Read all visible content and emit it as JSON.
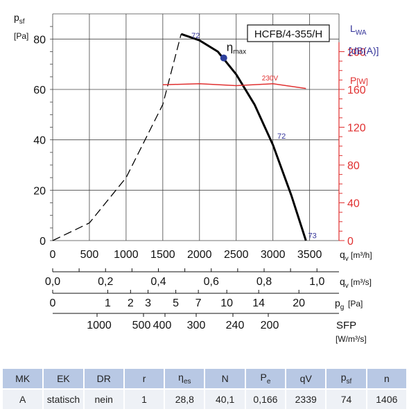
{
  "chart_data": {
    "type": "line",
    "model_box": "HCFB/4-355/H",
    "y_axis": {
      "label": "p",
      "label_sub": "sf",
      "unit": "[Pa]",
      "ticks": [
        0,
        20,
        40,
        60,
        80
      ],
      "ylim": [
        0,
        90
      ]
    },
    "right_axis": {
      "lwa_label": "L",
      "lwa_sub": "WA",
      "lwa_unit": "[dB(A)]",
      "power_label": "P",
      "power_unit": "[W]",
      "ticks": [
        0,
        40,
        80,
        120,
        160,
        200
      ],
      "color": "#e03030"
    },
    "x_axes": [
      {
        "label": "q",
        "label_sub": "v",
        "unit": "[m³/h]",
        "ticks": [
          "0",
          "500",
          "1000",
          "1500",
          "2000",
          "2500",
          "3000",
          "3500"
        ],
        "values": [
          0,
          500,
          1000,
          1500,
          2000,
          2500,
          3000,
          3500
        ]
      },
      {
        "label": "q",
        "label_sub": "v",
        "unit": "[m³/s]",
        "ticks": [
          "0,0",
          "0,2",
          "0,4",
          "0,6",
          "0,8",
          "1,0"
        ],
        "values": [
          0,
          0.2,
          0.4,
          0.6,
          0.8,
          1.0
        ]
      },
      {
        "label": "p",
        "label_sub": "g",
        "unit": "[Pa]",
        "ticks": [
          "0",
          "1",
          "2",
          "3",
          "5",
          "7",
          "10",
          "14",
          "20"
        ],
        "values": [
          0,
          1,
          2,
          3,
          5,
          7,
          10,
          14,
          20
        ]
      },
      {
        "label": "SFP",
        "unit": "[W/m³/s]",
        "ticks": [
          "1000",
          "500",
          "400",
          "300",
          "240",
          "200"
        ],
        "values": [
          1000,
          500,
          400,
          300,
          240,
          200
        ]
      }
    ],
    "series": [
      {
        "style": "dashed",
        "color": "#000000",
        "points": [
          [
            0,
            0
          ],
          [
            500,
            7
          ],
          [
            1000,
            25
          ],
          [
            1500,
            54
          ],
          [
            1750,
            82
          ]
        ]
      },
      {
        "style": "solid",
        "color": "#000000",
        "points": [
          [
            1750,
            82
          ],
          [
            2000,
            79.5
          ],
          [
            2250,
            75
          ],
          [
            2500,
            66
          ],
          [
            2750,
            54
          ],
          [
            3000,
            38
          ],
          [
            3250,
            18
          ],
          [
            3450,
            0
          ]
        ]
      },
      {
        "name": "230V",
        "axis": "right",
        "color": "#e03030",
        "points": [
          [
            1500,
            165
          ],
          [
            2000,
            166
          ],
          [
            2500,
            164
          ],
          [
            3000,
            166
          ],
          [
            3450,
            161
          ]
        ]
      }
    ],
    "annotations": {
      "eta_label": "η",
      "eta_sub": "max",
      "eta_point": [
        2330,
        72.5
      ],
      "labels": [
        "72",
        "72",
        "73",
        "230V"
      ]
    },
    "grid": true
  },
  "table": {
    "headers": [
      {
        "main": "MK",
        "sub": ""
      },
      {
        "main": "EK",
        "sub": ""
      },
      {
        "main": "DR",
        "sub": ""
      },
      {
        "main": "r",
        "sub": ""
      },
      {
        "main": "η",
        "sub": "es"
      },
      {
        "main": "N",
        "sub": ""
      },
      {
        "main": "P",
        "sub": "e"
      },
      {
        "main": "qV",
        "sub": ""
      },
      {
        "main": "p",
        "sub": "sf"
      },
      {
        "main": "n",
        "sub": ""
      }
    ],
    "row": [
      "A",
      "statisch",
      "nein",
      "1",
      "28,8",
      "40,1",
      "0,166",
      "2339",
      "74",
      "1406"
    ]
  }
}
